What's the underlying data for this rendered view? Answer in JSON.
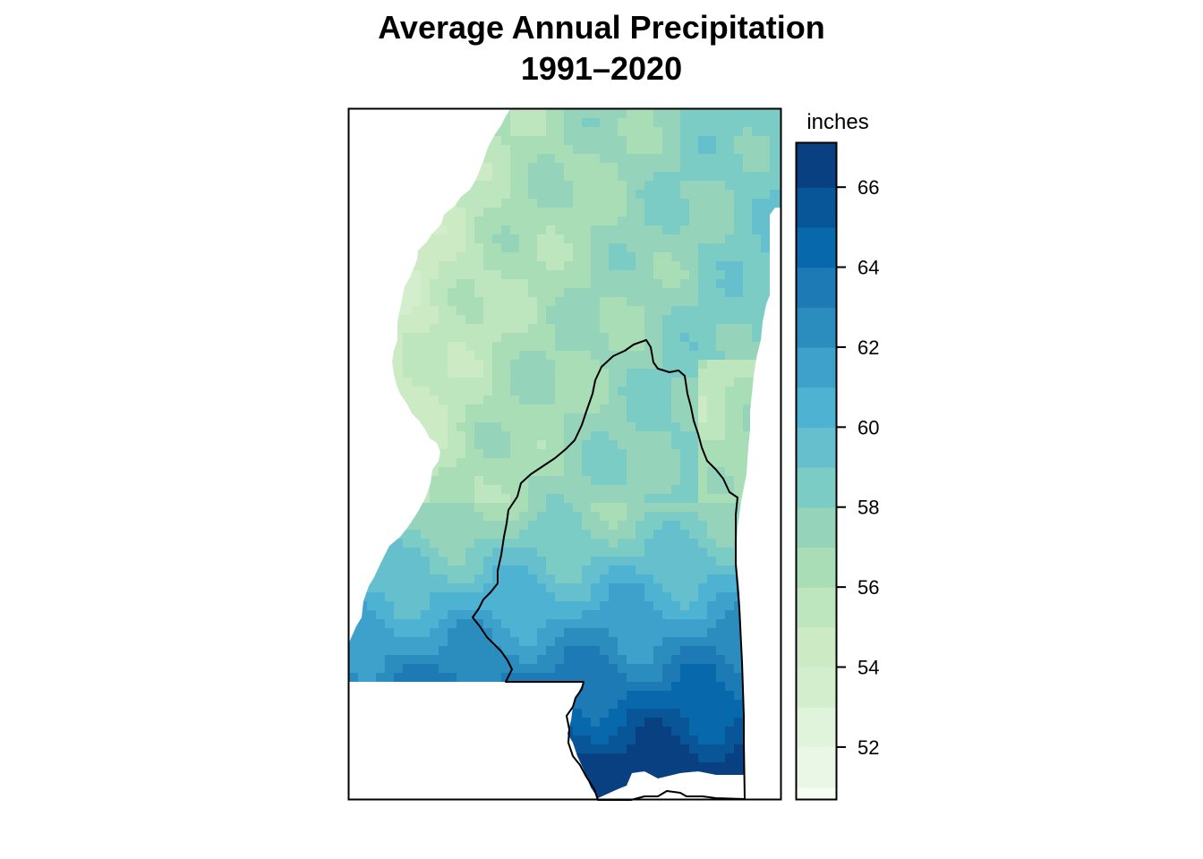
{
  "figure": {
    "title_line1": "Average Annual Precipitation",
    "title_line2": "1991–2020"
  },
  "legend": {
    "title": "inches",
    "range": [
      50.7,
      67.1
    ],
    "bin_width": 1,
    "colors": [
      "#f7fcf0",
      "#ebf7e6",
      "#e0f3db",
      "#d3eecd",
      "#ccebc5",
      "#bde5be",
      "#a8ddb5",
      "#95d4bb",
      "#7bccc4",
      "#66bfcd",
      "#4eb3d3",
      "#3ea1cb",
      "#2b8cbe",
      "#1d7ab5",
      "#0868ac",
      "#085597",
      "#084081"
    ],
    "ticks": [
      52,
      54,
      56,
      58,
      60,
      62,
      64,
      66
    ],
    "tick_labels": [
      "52",
      "54",
      "56",
      "58",
      "60",
      "62",
      "64",
      "66"
    ]
  },
  "map": {
    "region": "Mississippi watershed outline over gridded precipitation",
    "color_scale": "GnBu"
  }
}
